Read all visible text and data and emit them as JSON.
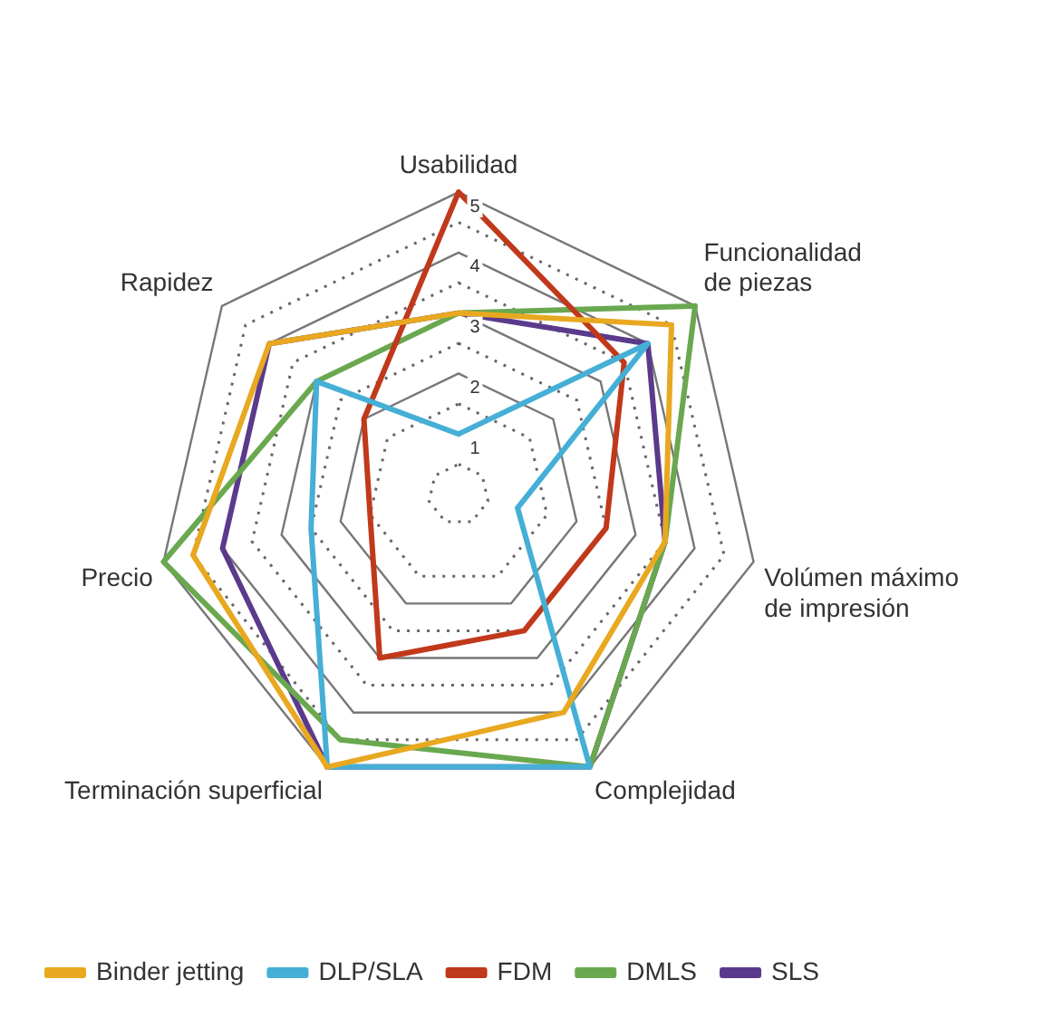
{
  "chart_data": {
    "type": "radar",
    "categories": [
      "Usabilidad",
      "Funcionalidad\nde piezas",
      "Volúmen máximo\nde impresión",
      "Complejidad",
      "Terminación superficial",
      "Precio",
      "Rapidez"
    ],
    "series": [
      {
        "name": "Binder jetting",
        "color": "#e8a820",
        "values": [
          3,
          4.5,
          3.5,
          4,
          5,
          4.5,
          4
        ]
      },
      {
        "name": "DLP/SLA",
        "color": "#45afd6",
        "values": [
          1,
          4,
          1,
          5,
          5,
          2.5,
          3
        ]
      },
      {
        "name": "FDM",
        "color": "#c0391b",
        "values": [
          5,
          3.5,
          2.5,
          2.5,
          3,
          1.5,
          2
        ]
      },
      {
        "name": "DMLS",
        "color": "#6aa84f",
        "values": [
          3,
          5,
          3.5,
          5,
          4.5,
          5,
          3
        ]
      },
      {
        "name": "SLS",
        "color": "#5b3a8c",
        "values": [
          3,
          4,
          3.5,
          5,
          5,
          4,
          4
        ]
      }
    ],
    "ylim": [
      0,
      5
    ],
    "yticks": [
      1,
      2,
      3,
      4,
      5
    ],
    "grid": true,
    "legend": "bottom",
    "marker": "none",
    "line_style": "solid"
  }
}
